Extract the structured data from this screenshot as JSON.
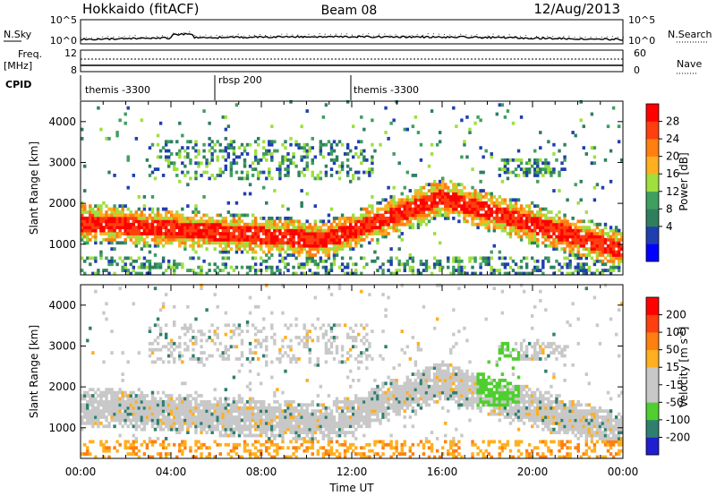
{
  "header": {
    "radar": "Hokkaido (fitACF)",
    "beam": "Beam 08",
    "date": "12/Aug/2013"
  },
  "top_panel": {
    "left_label": "N.Sky",
    "left_ticks": [
      "10^5",
      "10^0"
    ],
    "right_ticks": [
      "10^5",
      "10^0"
    ],
    "right_label": "N.Search",
    "freq_label_1": "Freq.",
    "freq_label_2": "[MHz]",
    "freq_ticks": [
      "12",
      "8"
    ],
    "nave_ticks": [
      "60",
      "0"
    ],
    "nave_label": "Nave",
    "cpid_label": "CPID"
  },
  "cpid_segments": [
    {
      "name": "themis -3300",
      "start_hour": 0
    },
    {
      "name": "rbsp 200",
      "start_hour": 6
    },
    {
      "name": "themis -3300",
      "start_hour": 12
    }
  ],
  "colors": {
    "power": [
      "#0000ff",
      "#1f3fb0",
      "#2f7f5f",
      "#3f9f5f",
      "#9fdf3f",
      "#ffaf1f",
      "#ff7f0f",
      "#ff3f0f",
      "#ff0000"
    ],
    "velocity": [
      "#1f1fcf",
      "#2f7f6f",
      "#4fcf2f",
      "#c8c8c8",
      "#c8c8c8",
      "#ffaf1f",
      "#ff7f0f",
      "#ff3f0f",
      "#ff0000"
    ]
  },
  "chart_data": [
    {
      "type": "heatmap",
      "name": "power",
      "ylabel": "Slant Range [km]",
      "ylim": [
        250,
        4500
      ],
      "xlim": [
        0,
        24
      ],
      "x_ticks": [
        "00:00",
        "04:00",
        "08:00",
        "12:00",
        "16:00",
        "20:00",
        "00:00"
      ],
      "y_ticks": [
        1000,
        2000,
        3000,
        4000
      ],
      "colorbar_label": "Power [dB]",
      "colorbar_ticks": [
        "28",
        "24",
        "20",
        "16",
        "12",
        "8",
        "4"
      ],
      "colorbar_range": [
        0,
        32
      ]
    },
    {
      "type": "heatmap",
      "name": "velocity",
      "ylabel": "Slant Range [km]",
      "xlabel": "Time UT",
      "ylim": [
        250,
        4500
      ],
      "xlim": [
        0,
        24
      ],
      "x_ticks": [
        "00:00",
        "04:00",
        "08:00",
        "12:00",
        "16:00",
        "20:00",
        "00:00"
      ],
      "y_ticks": [
        1000,
        2000,
        3000,
        4000
      ],
      "colorbar_label": "Velocity [m s",
      "colorbar_label_sup": "-1",
      "colorbar_ticks": [
        "200",
        "100",
        "50",
        "15",
        "-15",
        "-50",
        "-100",
        "-200"
      ],
      "colorbar_range": [
        -250,
        250
      ]
    }
  ]
}
